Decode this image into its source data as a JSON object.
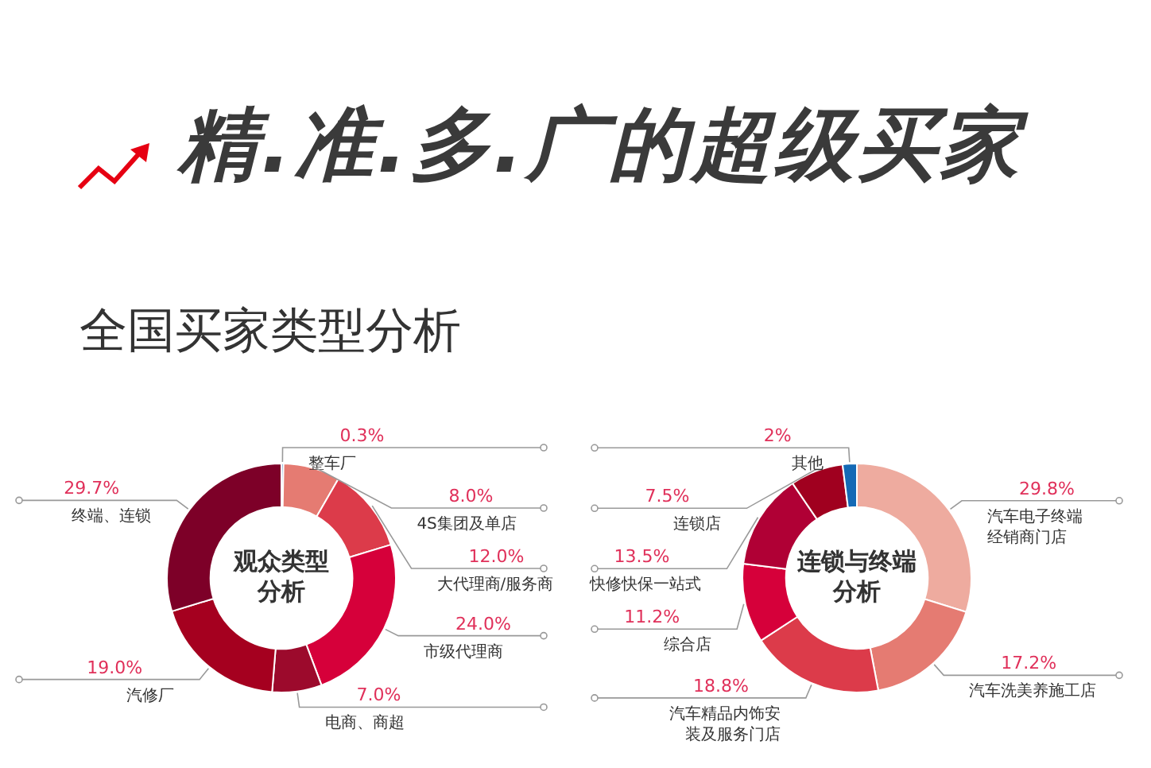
{
  "chart_data": [
    {
      "type": "donut",
      "title": "精.准.多.广的超级买家",
      "subtitle": "全国买家类型分析",
      "annotations": [
        "观众类型分析"
      ],
      "categories": [
        "整车厂",
        "4S集团及单店",
        "大代理商/服务商",
        "市级代理商",
        "电商、商超",
        "汽修厂",
        "终端、连锁"
      ],
      "values": [
        0.3,
        8.0,
        12.0,
        24.0,
        7.0,
        19.0,
        29.7
      ],
      "value_labels": [
        "0.3%",
        "8.0%",
        "12.0%",
        "24.0%",
        "7.0%",
        "19.0%",
        "29.7%"
      ],
      "colors": [
        "#1a6fb8",
        "#e57b72",
        "#dc3b4a",
        "#d6003a",
        "#9c0a2c",
        "#a5001f",
        "#7d0028"
      ]
    },
    {
      "type": "donut",
      "annotations": [
        "连锁与终端分析"
      ],
      "categories": [
        "汽车电子终端经销商门店",
        "汽车洗美养施工店",
        "汽车精品内饰安装及服务门店",
        "综合店",
        "快修快保一站式",
        "连锁店",
        "其他"
      ],
      "values": [
        29.8,
        17.2,
        18.8,
        11.2,
        13.5,
        7.5,
        2
      ],
      "value_labels": [
        "29.8%",
        "17.2%",
        "18.8%",
        "11.2%",
        "13.5%",
        "7.5%",
        "2%"
      ],
      "colors": [
        "#eeab9f",
        "#e57b72",
        "#dc3b4a",
        "#d6003a",
        "#b00035",
        "#a0001f",
        "#1469b5"
      ]
    }
  ]
}
